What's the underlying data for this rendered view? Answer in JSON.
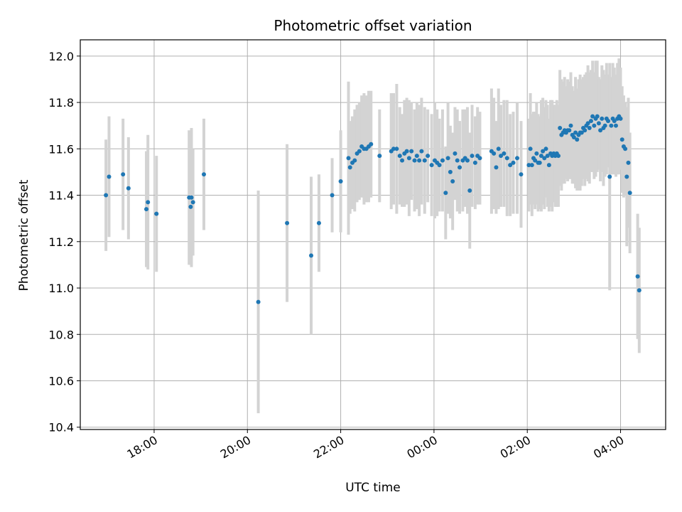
{
  "chart_data": {
    "type": "scatter",
    "title": "Photometric offset variation",
    "xlabel": "UTC time",
    "ylabel": "Photometric offset",
    "x_is_time": true,
    "x_ticks": [
      "18:00",
      "20:00",
      "22:00",
      "00:00",
      "02:00",
      "04:00"
    ],
    "y_ticks": [
      "10.4",
      "10.6",
      "10.8",
      "11.0",
      "11.2",
      "11.4",
      "11.6",
      "11.8",
      "12.0"
    ],
    "xlim": [
      "16:25",
      "04:58"
    ],
    "ylim": [
      10.39,
      12.07
    ],
    "grid": true,
    "marker_color": "#1f77b4",
    "errorbar_color": "#d3d3d3",
    "series": [
      {
        "x": [
          "16:58",
          "17:02",
          "17:20",
          "17:27",
          "17:50",
          "17:52",
          "18:03",
          "18:45",
          "18:47",
          "18:48",
          "18:50",
          "19:04",
          "20:14",
          "20:51",
          "21:22",
          "21:32",
          "21:49",
          "22:00",
          "22:10",
          "22:12",
          "22:15",
          "22:18",
          "22:21",
          "22:24",
          "22:27",
          "22:30",
          "22:33",
          "22:36",
          "22:39",
          "22:50",
          "23:05",
          "23:08",
          "23:12",
          "23:16",
          "23:19",
          "23:22",
          "23:25",
          "23:28",
          "23:31",
          "23:35",
          "23:38",
          "23:41",
          "23:44",
          "23:48",
          "23:52",
          "23:57",
          "00:01",
          "00:04",
          "00:07",
          "00:11",
          "00:15",
          "00:18",
          "00:21",
          "00:24",
          "00:27",
          "00:30",
          "00:33",
          "00:37",
          "00:40",
          "00:43",
          "00:46",
          "00:49",
          "00:53",
          "00:56",
          "00:59",
          "01:14",
          "01:17",
          "01:20",
          "01:23",
          "01:26",
          "01:30",
          "01:34",
          "01:38",
          "01:42",
          "01:47",
          "01:52",
          "02:02",
          "02:04",
          "02:06",
          "02:08",
          "02:10",
          "02:12",
          "02:14",
          "02:16",
          "02:18",
          "02:20",
          "02:22",
          "02:24",
          "02:26",
          "02:28",
          "02:30",
          "02:32",
          "02:34",
          "02:36",
          "02:38",
          "02:40",
          "02:42",
          "02:44",
          "02:46",
          "02:48",
          "02:50",
          "02:52",
          "02:54",
          "02:56",
          "02:58",
          "03:00",
          "03:02",
          "03:04",
          "03:06",
          "03:08",
          "03:10",
          "03:12",
          "03:14",
          "03:16",
          "03:18",
          "03:20",
          "03:22",
          "03:24",
          "03:26",
          "03:28",
          "03:30",
          "03:32",
          "03:34",
          "03:36",
          "03:38",
          "03:40",
          "03:42",
          "03:44",
          "03:46",
          "03:48",
          "03:50",
          "03:52",
          "03:54",
          "03:56",
          "03:58",
          "04:00",
          "04:02",
          "04:04",
          "04:06",
          "04:08",
          "04:10",
          "04:12",
          "04:22",
          "04:24"
        ],
        "y": [
          11.4,
          11.48,
          11.49,
          11.43,
          11.34,
          11.37,
          11.32,
          11.39,
          11.35,
          11.39,
          11.37,
          11.49,
          10.94,
          11.28,
          11.14,
          11.28,
          11.4,
          11.46,
          11.56,
          11.52,
          11.54,
          11.55,
          11.58,
          11.59,
          11.61,
          11.6,
          11.6,
          11.61,
          11.62,
          11.57,
          11.59,
          11.6,
          11.6,
          11.57,
          11.55,
          11.58,
          11.59,
          11.56,
          11.59,
          11.55,
          11.57,
          11.55,
          11.59,
          11.55,
          11.57,
          11.53,
          11.55,
          11.54,
          11.53,
          11.55,
          11.41,
          11.56,
          11.5,
          11.46,
          11.58,
          11.55,
          11.52,
          11.55,
          11.56,
          11.55,
          11.42,
          11.57,
          11.54,
          11.57,
          11.56,
          11.59,
          11.58,
          11.52,
          11.6,
          11.57,
          11.58,
          11.56,
          11.53,
          11.54,
          11.56,
          11.49,
          11.53,
          11.6,
          11.53,
          11.56,
          11.55,
          11.58,
          11.54,
          11.54,
          11.57,
          11.59,
          11.56,
          11.6,
          11.57,
          11.53,
          11.58,
          11.57,
          11.58,
          11.57,
          11.58,
          11.57,
          11.69,
          11.66,
          11.67,
          11.68,
          11.67,
          11.68,
          11.68,
          11.7,
          11.66,
          11.65,
          11.67,
          11.64,
          11.66,
          11.67,
          11.67,
          11.69,
          11.68,
          11.7,
          11.71,
          11.69,
          11.72,
          11.74,
          11.7,
          11.73,
          11.74,
          11.71,
          11.68,
          11.73,
          11.69,
          11.7,
          11.73,
          11.72,
          11.48,
          11.7,
          11.73,
          11.72,
          11.7,
          11.73,
          11.74,
          11.73,
          11.64,
          11.61,
          11.6,
          11.48,
          11.54,
          11.41,
          11.05,
          10.99
        ],
        "err": [
          0.24,
          0.26,
          0.24,
          0.22,
          0.25,
          0.29,
          0.25,
          0.29,
          0.25,
          0.3,
          0.23,
          0.24,
          0.48,
          0.34,
          0.34,
          0.21,
          0.16,
          0.22,
          0.33,
          0.2,
          0.2,
          0.22,
          0.21,
          0.21,
          0.22,
          0.24,
          0.23,
          0.24,
          0.23,
          0.2,
          0.25,
          0.24,
          0.28,
          0.21,
          0.2,
          0.23,
          0.23,
          0.25,
          0.21,
          0.22,
          0.23,
          0.24,
          0.23,
          0.23,
          0.2,
          0.22,
          0.25,
          0.23,
          0.2,
          0.22,
          0.2,
          0.24,
          0.2,
          0.21,
          0.2,
          0.22,
          0.2,
          0.22,
          0.21,
          0.23,
          0.25,
          0.22,
          0.2,
          0.21,
          0.2,
          0.27,
          0.24,
          0.2,
          0.26,
          0.22,
          0.23,
          0.25,
          0.22,
          0.22,
          0.24,
          0.23,
          0.2,
          0.24,
          0.22,
          0.2,
          0.21,
          0.22,
          0.21,
          0.2,
          0.24,
          0.23,
          0.22,
          0.21,
          0.22,
          0.2,
          0.23,
          0.24,
          0.21,
          0.22,
          0.23,
          0.22,
          0.25,
          0.24,
          0.22,
          0.23,
          0.2,
          0.22,
          0.21,
          0.23,
          0.21,
          0.2,
          0.24,
          0.22,
          0.24,
          0.25,
          0.23,
          0.22,
          0.24,
          0.23,
          0.25,
          0.24,
          0.22,
          0.24,
          0.23,
          0.25,
          0.24,
          0.2,
          0.22,
          0.23,
          0.25,
          0.22,
          0.24,
          0.2,
          0.49,
          0.21,
          0.24,
          0.23,
          0.22,
          0.24,
          0.25,
          0.22,
          0.23,
          0.22,
          0.2,
          0.3,
          0.28,
          0.26,
          0.27,
          0.27
        ]
      }
    ]
  }
}
